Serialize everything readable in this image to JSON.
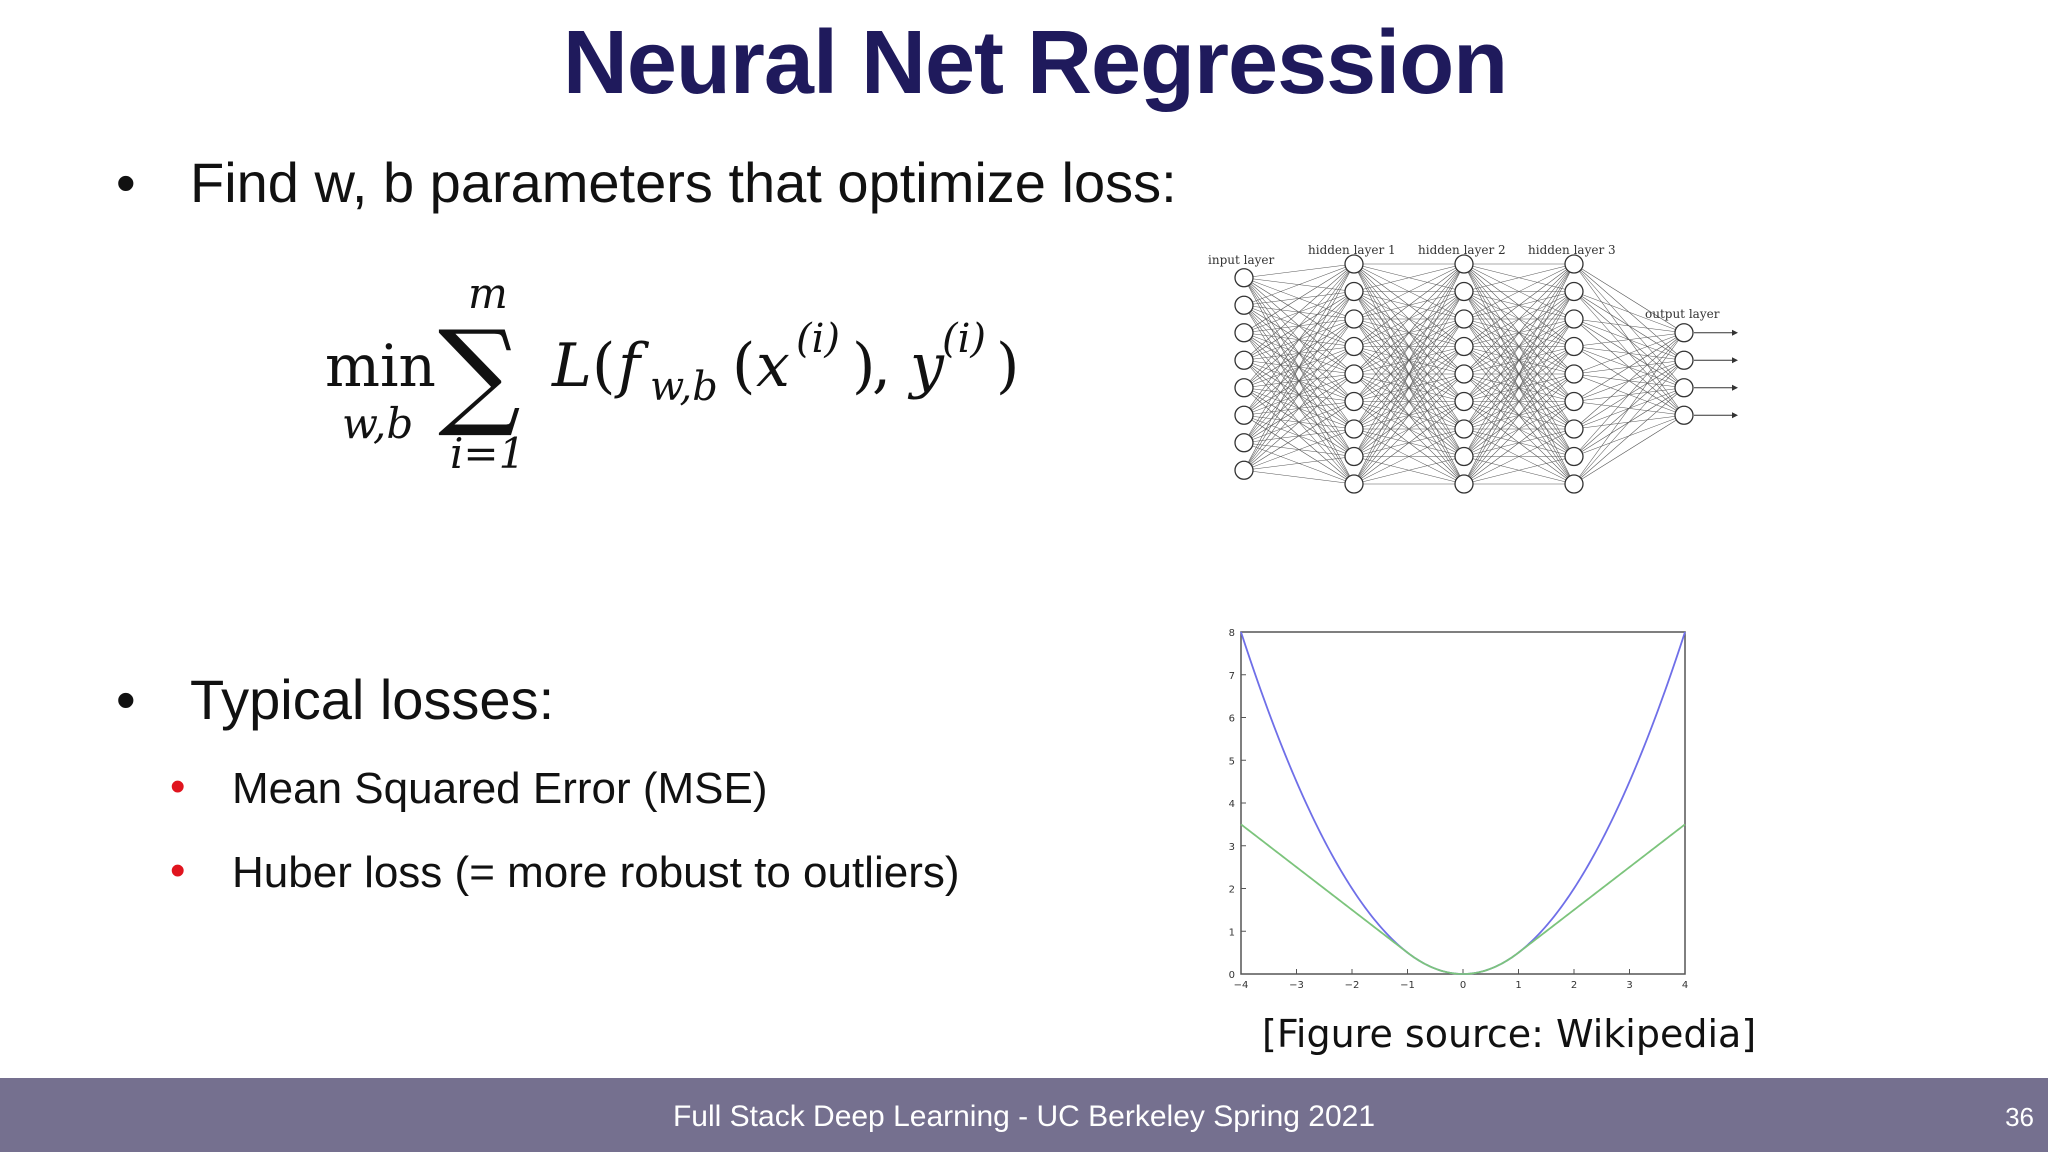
{
  "slide": {
    "title": "Neural Net Regression",
    "bullet1": "Find w, b parameters that optimize loss:",
    "bullet_marker": "•",
    "bullet2": "Typical losses:",
    "sub_items": [
      "Mean Squared Error (MSE)",
      "Huber loss (= more robust to outliers)"
    ],
    "caption": "[Figure source: Wikipedia]"
  },
  "formula": {
    "min": "min",
    "min_sub": "w,b",
    "sum_upper": "m",
    "sum_lower": "i=1",
    "sum_symbol": "∑",
    "loss_L": "L",
    "open_paren": "(",
    "f": "f",
    "f_sub": "w,b",
    "x": "x",
    "sup_i": "(i)",
    "y": "y",
    "comma": ",",
    "close_paren": ")"
  },
  "network": {
    "layer_labels": [
      "input layer",
      "hidden layer 1",
      "hidden layer 2",
      "hidden layer 3",
      "output layer"
    ],
    "neurons_per_layer": [
      8,
      9,
      9,
      9,
      4
    ]
  },
  "loss_plot": {
    "x_ticks": [
      "−4",
      "−3",
      "−2",
      "−1",
      "0",
      "1",
      "2",
      "3",
      "4"
    ],
    "y_ticks": [
      "0",
      "1",
      "2",
      "3",
      "4",
      "5",
      "6",
      "7",
      "8"
    ],
    "xlim": [
      -4,
      4
    ],
    "ylim": [
      0,
      8
    ],
    "mse_color": "#6f6fe8",
    "huber_color": "#7cc47c",
    "huber_delta": 1
  },
  "footer": {
    "text": "Full Stack Deep Learning - UC Berkeley Spring 2021",
    "page_number": "36",
    "background": "#75708f"
  },
  "colors": {
    "title": "#1f1a5c",
    "sub_bullet": "#e0141e"
  }
}
